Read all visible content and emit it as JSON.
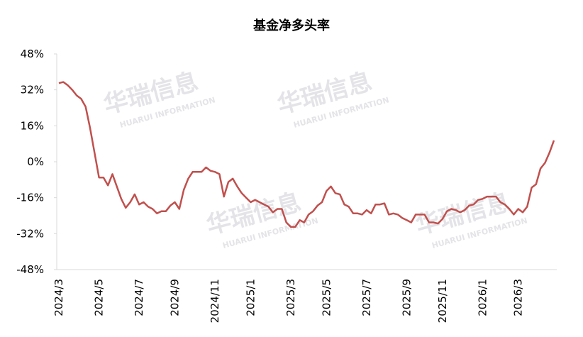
{
  "chart_data": {
    "type": "line",
    "title": "基金净多头率",
    "watermark": {
      "brand": "华瑞信息",
      "sub": "HUARUI INFORMATION"
    },
    "categories": [
      "2024/3",
      null,
      null,
      null,
      null,
      null,
      null,
      null,
      null,
      "2024/5",
      null,
      null,
      null,
      null,
      null,
      null,
      null,
      null,
      "2024/7",
      null,
      null,
      null,
      null,
      null,
      null,
      null,
      "2024/9",
      null,
      null,
      null,
      null,
      null,
      null,
      null,
      null,
      "2024/11",
      null,
      null,
      null,
      null,
      null,
      null,
      null,
      "2025/1",
      null,
      null,
      null,
      null,
      null,
      null,
      null,
      null,
      "2025/3",
      null,
      null,
      null,
      null,
      null,
      null,
      null,
      "2025/5",
      null,
      null,
      null,
      null,
      null,
      null,
      null,
      null,
      "2025/7",
      null,
      null,
      null,
      null,
      null,
      null,
      null,
      null,
      "2025/9",
      null,
      null,
      null,
      null,
      null,
      null,
      null,
      "2025/11",
      null,
      null,
      null,
      null,
      null,
      null,
      null,
      null,
      "2026/1",
      null,
      null,
      null,
      null,
      null,
      null,
      null,
      "2026/3",
      null,
      null,
      null,
      null,
      null,
      null,
      null,
      null
    ],
    "series": [
      {
        "name": "基金净多头率",
        "color": "#c0504d",
        "values": [
          35,
          35.5,
          34,
          32,
          29.5,
          28,
          24.5,
          15,
          4,
          -7,
          -7,
          -10.5,
          -5.5,
          -11,
          -16.5,
          -20.5,
          -18,
          -14.5,
          -19,
          -18,
          -20,
          -21,
          -23,
          -22,
          -22,
          -19.5,
          -18,
          -21,
          -12.5,
          -7.5,
          -4.5,
          -4.5,
          -4.5,
          -2.5,
          -4,
          -4.5,
          -5.5,
          -15.5,
          -9,
          -7.5,
          -11,
          -14,
          -16,
          -18,
          -17,
          -18,
          -19,
          -20,
          -22.5,
          -21,
          -21,
          -27,
          -29,
          -29,
          -26,
          -27,
          -23.5,
          -22,
          -19.5,
          -18,
          -13,
          -11,
          -14,
          -14.5,
          -19,
          -20,
          -23,
          -23,
          -23.5,
          -21.5,
          -23,
          -19,
          -19,
          -18.5,
          -23.5,
          -23,
          -23.5,
          -25,
          -26,
          -27,
          -23.5,
          -23.5,
          -23.5,
          -27,
          -27,
          -27.5,
          -25.5,
          -22,
          -21,
          -21.5,
          -22.5,
          -21.5,
          -19.5,
          -19,
          -17,
          -16.5,
          -15.5,
          -15.5,
          -15.5,
          -18,
          -19,
          -21,
          -23.5,
          -21,
          -22.5,
          -20,
          -11.5,
          -10,
          -3,
          -0.5,
          4,
          9.5
        ]
      }
    ],
    "ylim": [
      -48,
      48
    ],
    "yticks": [
      {
        "value": 48,
        "label": "48%"
      },
      {
        "value": 32,
        "label": "32%"
      },
      {
        "value": 16,
        "label": "16%"
      },
      {
        "value": 0,
        "label": "0%"
      },
      {
        "value": -16,
        "label": "-16%"
      },
      {
        "value": -32,
        "label": "-32%"
      },
      {
        "value": -48,
        "label": "-48%"
      }
    ],
    "grid": false
  }
}
